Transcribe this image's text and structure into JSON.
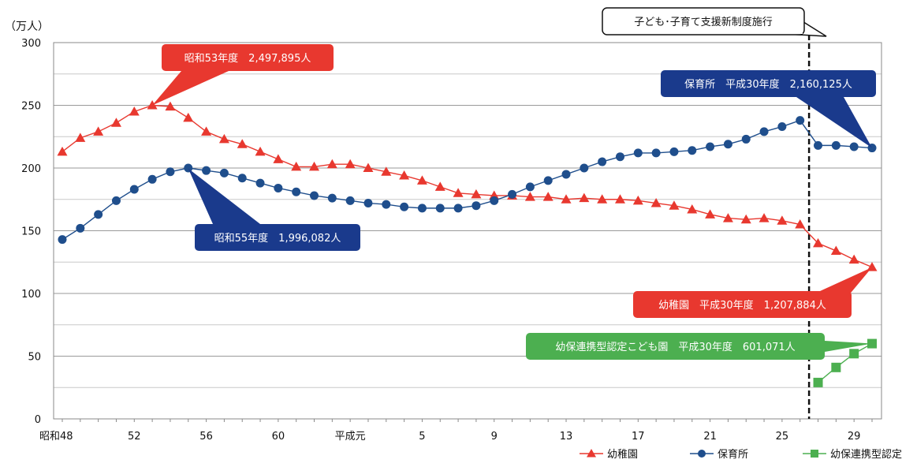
{
  "chart_data": {
    "type": "line",
    "y_unit": "（万人）",
    "ylim": [
      0,
      300
    ],
    "y_ticks": [
      0,
      50,
      100,
      150,
      200,
      250,
      300
    ],
    "grid": true,
    "legend_position": "bottom-right",
    "x": [
      "昭和48",
      "49",
      "50",
      "51",
      "52",
      "53",
      "54",
      "55",
      "56",
      "57",
      "58",
      "59",
      "60",
      "61",
      "62",
      "63",
      "平成元",
      "2",
      "3",
      "4",
      "5",
      "6",
      "7",
      "8",
      "9",
      "10",
      "11",
      "12",
      "13",
      "14",
      "15",
      "16",
      "17",
      "18",
      "19",
      "20",
      "21",
      "22",
      "23",
      "24",
      "25",
      "26",
      "27",
      "28",
      "29",
      "30"
    ],
    "x_tick_labels": [
      {
        "label": "昭和48",
        "x": "昭和48"
      },
      {
        "label": "52",
        "x": "52"
      },
      {
        "label": "56",
        "x": "56"
      },
      {
        "label": "60",
        "x": "60"
      },
      {
        "label": "平成元",
        "x": "平成元"
      },
      {
        "label": "5",
        "x": "5"
      },
      {
        "label": "9",
        "x": "9"
      },
      {
        "label": "13",
        "x": "13"
      },
      {
        "label": "17",
        "x": "17"
      },
      {
        "label": "21",
        "x": "21"
      },
      {
        "label": "25",
        "x": "25"
      },
      {
        "label": "29",
        "x": "29"
      }
    ],
    "series": [
      {
        "name": "幼稚園",
        "color": "#e8382f",
        "marker": "triangle",
        "values": [
          213,
          224,
          229,
          236,
          245,
          250,
          249,
          240,
          229,
          223,
          219,
          213,
          207,
          201,
          201,
          203,
          203,
          200,
          197,
          194,
          190,
          185,
          180,
          179,
          178,
          178,
          177,
          177,
          175,
          176,
          175,
          175,
          174,
          172,
          170,
          167,
          163,
          160,
          159,
          160,
          158,
          155,
          140,
          134,
          127,
          121
        ]
      },
      {
        "name": "保育所",
        "color": "#1f4e8c",
        "marker": "circle",
        "values": [
          143,
          152,
          163,
          174,
          183,
          191,
          197,
          200,
          198,
          196,
          192,
          188,
          184,
          181,
          178,
          176,
          174,
          172,
          171,
          169,
          168,
          168,
          168,
          170,
          174,
          179,
          185,
          190,
          195,
          200,
          205,
          209,
          212,
          212,
          213,
          214,
          217,
          219,
          223,
          229,
          233,
          238,
          218,
          218,
          217,
          216
        ]
      },
      {
        "name": "幼保連携型認定こども園",
        "color": "#4caf50",
        "marker": "square",
        "values": [
          null,
          null,
          null,
          null,
          null,
          null,
          null,
          null,
          null,
          null,
          null,
          null,
          null,
          null,
          null,
          null,
          null,
          null,
          null,
          null,
          null,
          null,
          null,
          null,
          null,
          null,
          null,
          null,
          null,
          null,
          null,
          null,
          null,
          null,
          null,
          null,
          null,
          null,
          null,
          null,
          null,
          null,
          29,
          41,
          52,
          60
        ]
      }
    ],
    "annotations": [
      {
        "text": "昭和53年度　2,497,895人",
        "color": "#e8382f",
        "target_index": 5,
        "target_value": 250
      },
      {
        "text": "昭和55年度　1,996,082人",
        "color": "#1a3a8c",
        "target_index": 7,
        "target_value": 199.6
      },
      {
        "text": "保育所　平成30年度　2,160,125人",
        "color": "#1a3a8c",
        "target_index": 45,
        "target_value": 216
      },
      {
        "text": "幼稚園　平成30年度　1,207,884人",
        "color": "#e8382f",
        "target_index": 45,
        "target_value": 120.8
      },
      {
        "text": "幼保連携型認定こども園　平成30年度　601,071人",
        "color": "#4caf50",
        "target_index": 45,
        "target_value": 60.1
      }
    ],
    "event": {
      "text": "子ども･子育て支援新制度施行",
      "between_index": [
        41,
        42
      ]
    }
  }
}
